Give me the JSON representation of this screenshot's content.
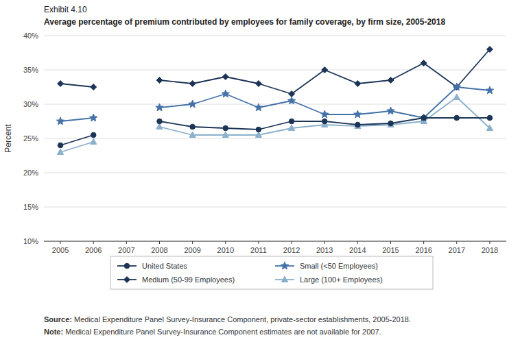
{
  "chart_data": {
    "type": "line",
    "title": "Exhibit 4.10",
    "subtitle": "Average percentage of premium contributed by employees for family coverage, by firm size, 2005-2018",
    "y_label": "Percent",
    "categories": [
      2005,
      2006,
      2007,
      2008,
      2009,
      2010,
      2011,
      2012,
      2013,
      2014,
      2015,
      2016,
      2017,
      2018
    ],
    "series": [
      {
        "name": "United States",
        "color": "#1c3557",
        "marker": "circle",
        "values": [
          24.0,
          25.5,
          null,
          27.5,
          26.7,
          26.5,
          26.3,
          27.5,
          27.5,
          27.0,
          27.2,
          28.0,
          28.0,
          28.0
        ]
      },
      {
        "name": "Small (<50 Employees)",
        "color": "#4472a8",
        "marker": "star",
        "values": [
          27.5,
          28.0,
          null,
          29.5,
          30.0,
          31.5,
          29.5,
          30.5,
          28.5,
          28.5,
          29.0,
          28.0,
          32.5,
          32.0
        ]
      },
      {
        "name": "Medium (50-99 Employees)",
        "color": "#1c3557",
        "marker": "diamond",
        "values": [
          33.0,
          32.5,
          null,
          33.5,
          33.0,
          34.0,
          33.0,
          31.5,
          35.0,
          33.0,
          33.5,
          36.0,
          32.5,
          38.0
        ]
      },
      {
        "name": "Large (100+ Employees)",
        "color": "#8ab0cc",
        "marker": "triangle",
        "values": [
          23.0,
          24.5,
          null,
          26.7,
          25.5,
          25.5,
          25.5,
          26.5,
          27.0,
          26.8,
          27.0,
          27.5,
          31.0,
          26.5
        ]
      }
    ],
    "ylim": [
      10,
      40
    ],
    "yticks": [
      {
        "value": 10,
        "label": "10%"
      },
      {
        "value": 15,
        "label": "15%"
      },
      {
        "value": 20,
        "label": "20%"
      },
      {
        "value": 25,
        "label": "25%"
      },
      {
        "value": 30,
        "label": "30%"
      },
      {
        "value": 35,
        "label": "35%"
      },
      {
        "value": 40,
        "label": "40%"
      }
    ],
    "grid": true,
    "legend": "bottom",
    "annotations": [
      "Source: Medical Expenditure Panel Survey-Insurance Component, private-sector establishments, 2005-2018.",
      "Note: Medical Expenditure Panel Survey-Insurance Component estimates are not available for 2007."
    ]
  }
}
